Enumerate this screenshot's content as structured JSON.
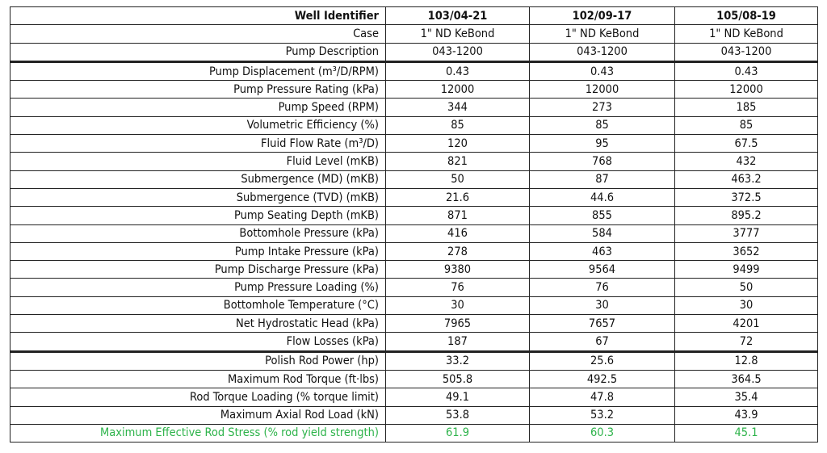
{
  "header": {
    "label": "Well Identifier",
    "wells": [
      "103/04-21",
      "102/09-17",
      "105/08-19"
    ]
  },
  "rows": [
    {
      "label": "Case",
      "values": [
        "1\" ND KeBond",
        "1\" ND KeBond",
        "1\" ND KeBond"
      ]
    },
    {
      "label": "Pump Description",
      "values": [
        "043-1200",
        "043-1200",
        "043-1200"
      ]
    },
    {
      "label": "Pump Displacement (m³/D/RPM)",
      "values": [
        "0.43",
        "0.43",
        "0.43"
      ]
    },
    {
      "label": "Pump Pressure Rating (kPa)",
      "values": [
        "12000",
        "12000",
        "12000"
      ]
    },
    {
      "label": "Pump Speed (RPM)",
      "values": [
        "344",
        "273",
        "185"
      ]
    },
    {
      "label": "Volumetric Efficiency (%)",
      "values": [
        "85",
        "85",
        "85"
      ]
    },
    {
      "label": "Fluid Flow Rate (m³/D)",
      "values": [
        "120",
        "95",
        "67.5"
      ]
    },
    {
      "label": "Fluid Level (mKB)",
      "values": [
        "821",
        "768",
        "432"
      ]
    },
    {
      "label": "Submergence (MD) (mKB)",
      "values": [
        "50",
        "87",
        "463.2"
      ]
    },
    {
      "label": "Submergence (TVD) (mKB)",
      "values": [
        "21.6",
        "44.6",
        "372.5"
      ]
    },
    {
      "label": "Pump Seating Depth (mKB)",
      "values": [
        "871",
        "855",
        "895.2"
      ]
    },
    {
      "label": "Bottomhole Pressure (kPa)",
      "values": [
        "416",
        "584",
        "3777"
      ]
    },
    {
      "label": "Pump Intake Pressure (kPa)",
      "values": [
        "278",
        "463",
        "3652"
      ]
    },
    {
      "label": "Pump Discharge Pressure (kPa)",
      "values": [
        "9380",
        "9564",
        "9499"
      ]
    },
    {
      "label": "Pump Pressure Loading (%)",
      "values": [
        "76",
        "76",
        "50"
      ]
    },
    {
      "label": "Bottomhole Temperature (°C)",
      "values": [
        "30",
        "30",
        "30"
      ]
    },
    {
      "label": "Net Hydrostatic Head (kPa)",
      "values": [
        "7965",
        "7657",
        "4201"
      ]
    },
    {
      "label": "Flow Losses (kPa)",
      "values": [
        "187",
        "67",
        "72"
      ]
    },
    {
      "label": "Polish Rod Power (hp)",
      "values": [
        "33.2",
        "25.6",
        "12.8"
      ]
    },
    {
      "label": "Maximum Rod Torque (ft·lbs)",
      "values": [
        "505.8",
        "492.5",
        "364.5"
      ]
    },
    {
      "label": "Rod Torque Loading (% torque limit)",
      "values": [
        "49.1",
        "47.8",
        "35.4"
      ]
    },
    {
      "label": "Maximum Axial Rod Load (kN)",
      "values": [
        "53.8",
        "53.2",
        "43.9"
      ]
    },
    {
      "label": "Maximum Effective Rod Stress (% rod yield strength)",
      "values": [
        "61.9",
        "60.3",
        "45.1"
      ]
    }
  ],
  "colors": {
    "highlight": "#2db34a",
    "border": "#222222"
  }
}
